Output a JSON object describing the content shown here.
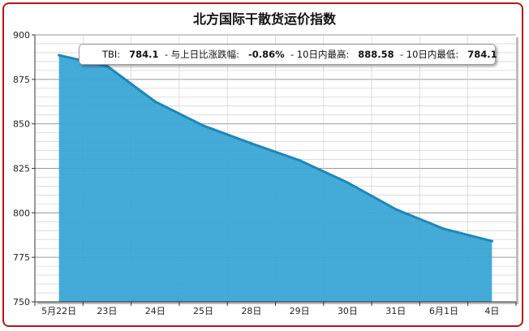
{
  "chart_data": {
    "type": "area",
    "title": "北方国际干散货运价指数",
    "categories": [
      "5月22日",
      "23日",
      "24日",
      "25日",
      "28日",
      "29日",
      "30日",
      "31日",
      "6月1日",
      "4日"
    ],
    "values": [
      888.58,
      882.5,
      862.5,
      849.0,
      839.0,
      829.5,
      817.0,
      802.0,
      791.0,
      784.1
    ],
    "ylim": [
      750,
      900
    ],
    "yticks": [
      750,
      775,
      800,
      825,
      850,
      875,
      900
    ],
    "grid": true,
    "colors": {
      "area": "#3aa5d6",
      "line": "#1f87b8",
      "grid": "#c8c8c8",
      "border": "#b5161b"
    },
    "annotation": {
      "index_label": "TBI:",
      "index_value": "784.1",
      "change_label": "- 与上日比涨跌幅:",
      "change_value": "-0.86%",
      "high_label": "- 10日内最高:",
      "high_value": "888.58",
      "low_label": "- 10日内最低:",
      "low_value": "784.1"
    }
  }
}
